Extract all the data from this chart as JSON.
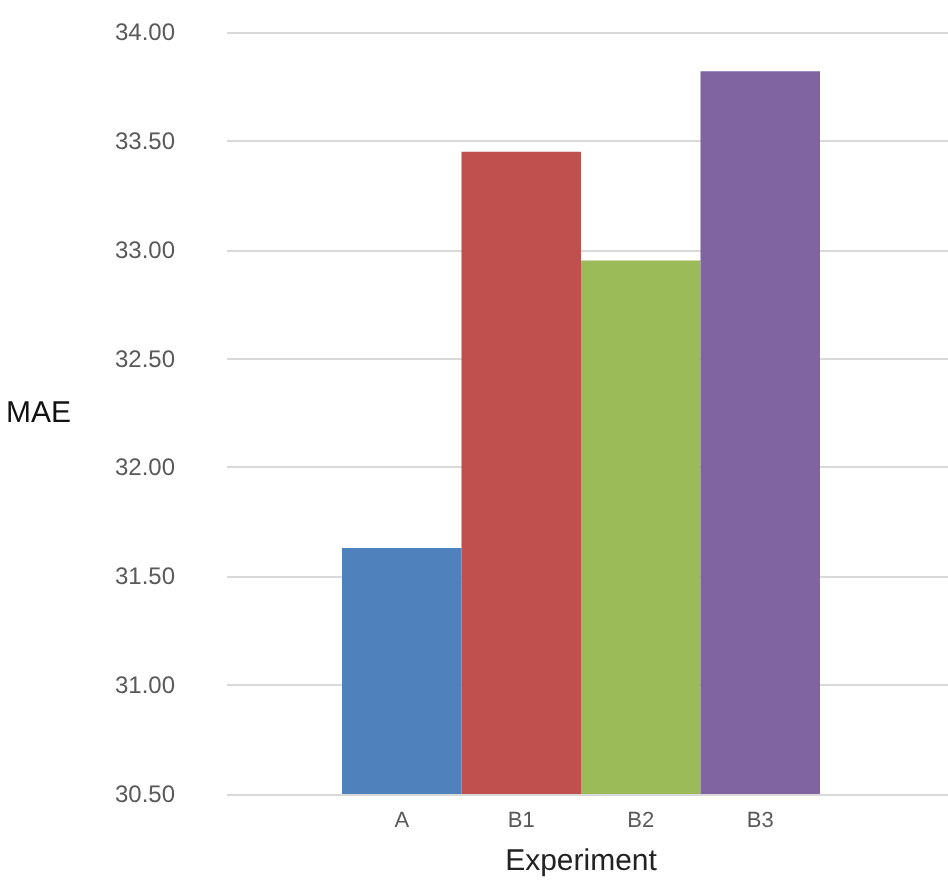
{
  "chart_data": {
    "type": "bar",
    "xlabel": "Experiment",
    "ylabel": "MAE",
    "categories": [
      "A",
      "B1",
      "B2",
      "B3"
    ],
    "values": [
      31.63,
      33.45,
      32.95,
      33.82
    ],
    "colors": [
      "#4f81bd",
      "#c0504d",
      "#9bbb59",
      "#8064a2"
    ],
    "ylim": [
      30.5,
      34
    ],
    "yticks": [
      {
        "value": 30.5,
        "label": "30.50"
      },
      {
        "value": 31,
        "label": "31.00"
      },
      {
        "value": 31.5,
        "label": "31.50"
      },
      {
        "value": 32,
        "label": "32.00"
      },
      {
        "value": 32.5,
        "label": "32.50"
      },
      {
        "value": 33,
        "label": "33.00"
      },
      {
        "value": 33.5,
        "label": "33.50"
      },
      {
        "value": 34,
        "label": "34.00"
      }
    ],
    "grid": "y"
  }
}
